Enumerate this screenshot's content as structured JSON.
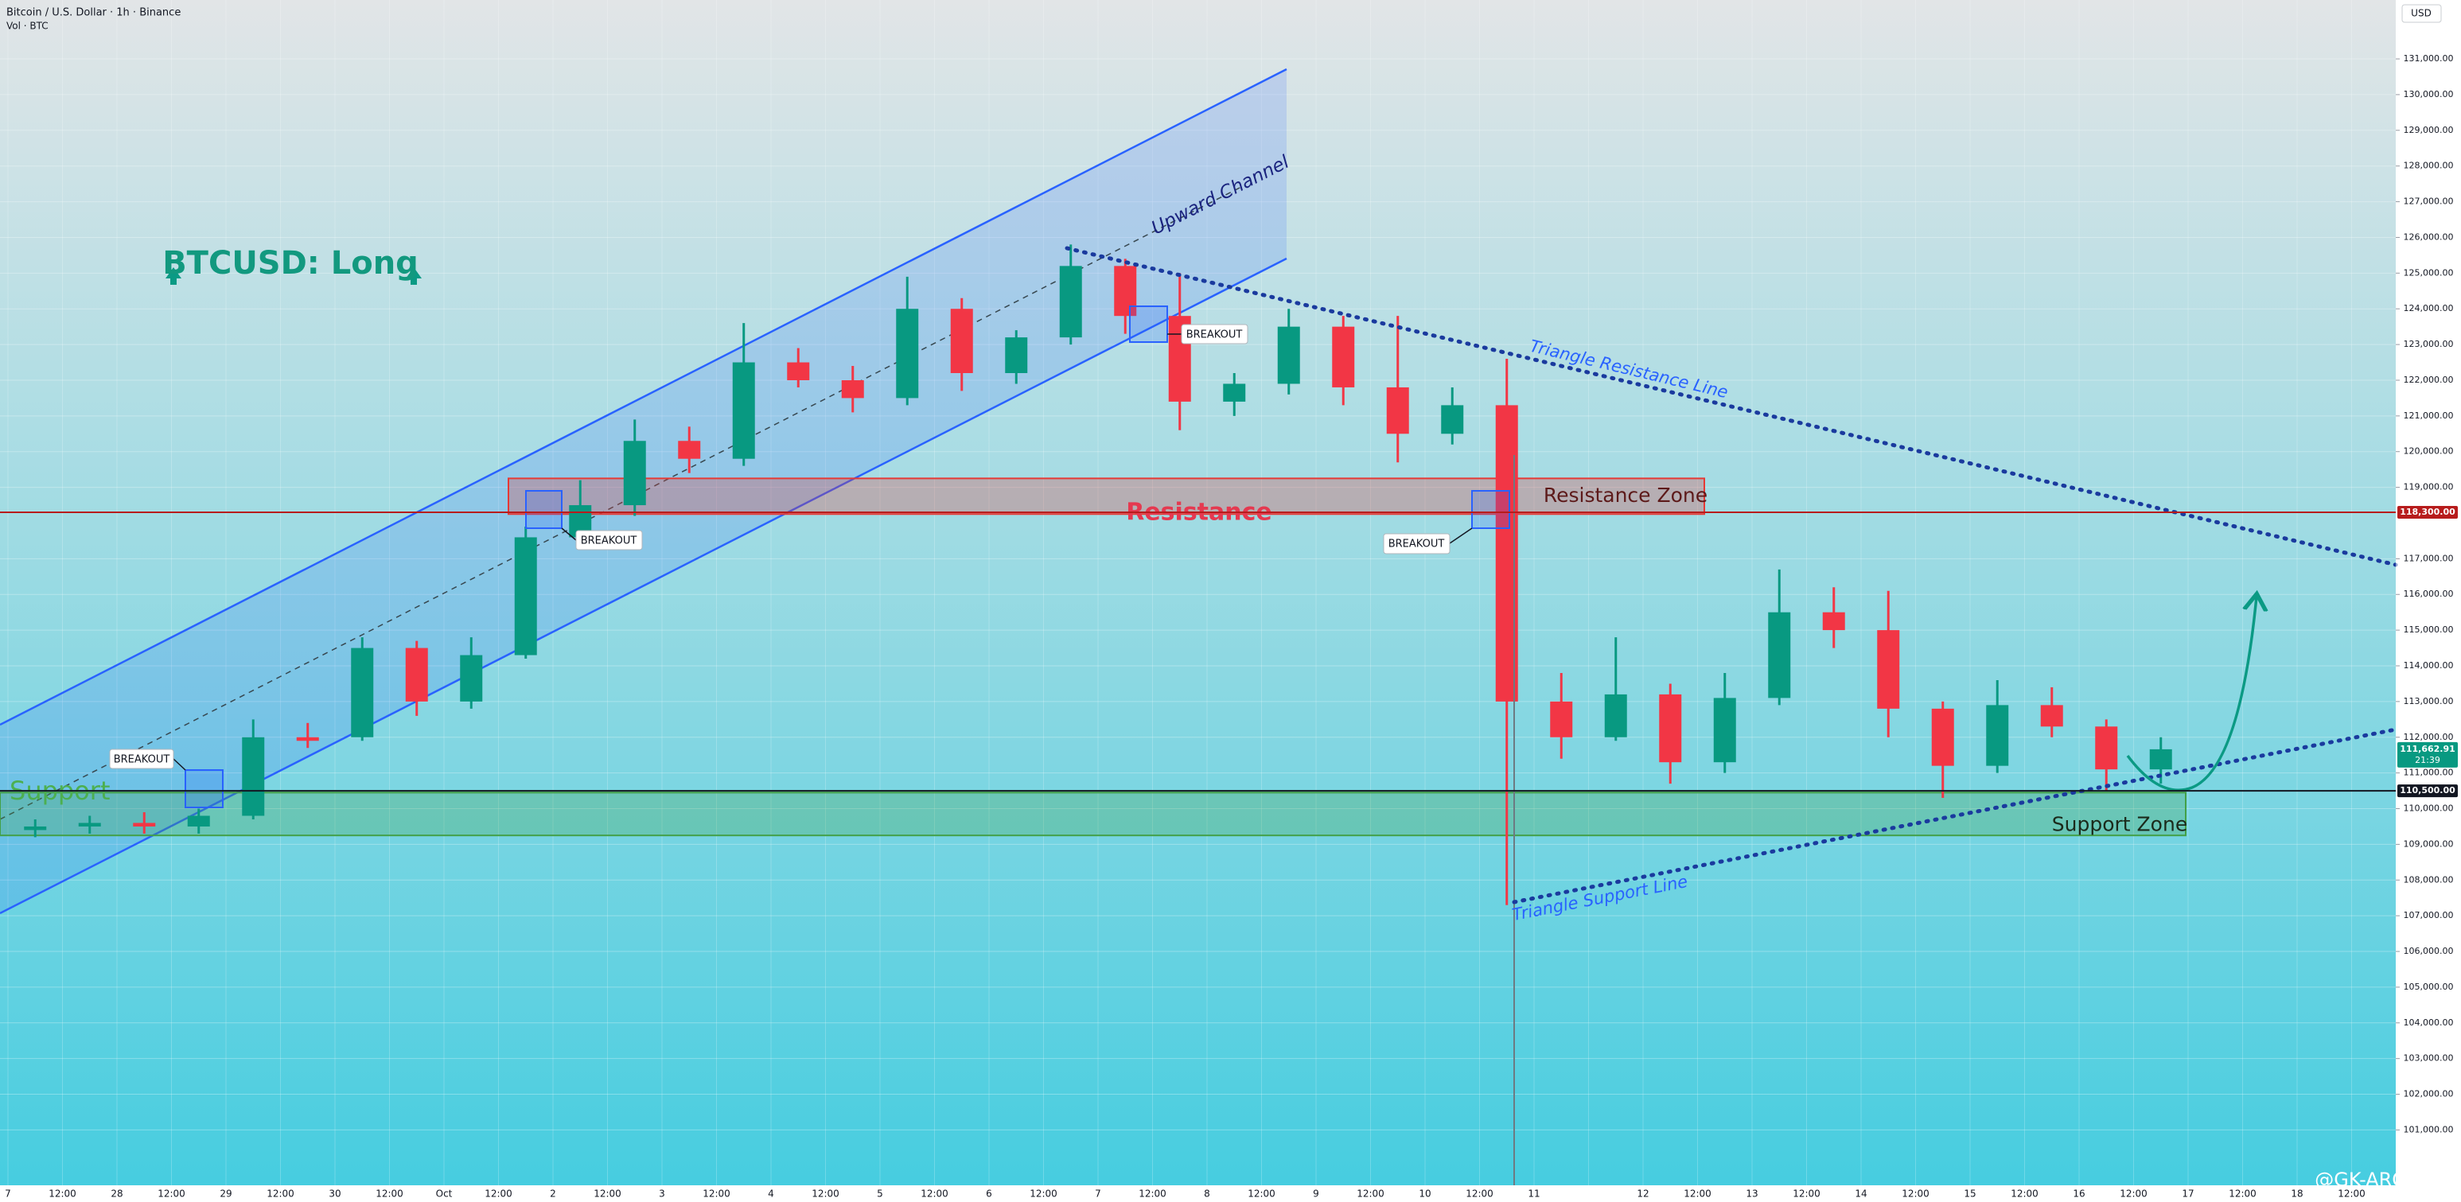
{
  "chart_data": {
    "type": "candlestick",
    "title": "Bitcoin / U.S. Dollar · 1h · Binance",
    "subtitle": "Vol · BTC",
    "currency": "USD",
    "watermark": "@GK-ARONNO",
    "categories": [
      "7",
      "12:00",
      "28",
      "12:00",
      "29",
      "12:00",
      "30",
      "12:00",
      "Oct",
      "12:00",
      "2",
      "12:00",
      "3",
      "12:00",
      "4",
      "12:00",
      "5",
      "12:00",
      "6",
      "12:00",
      "7",
      "12:00",
      "8",
      "12:00",
      "9",
      "12:00",
      "10",
      "12:00",
      "11",
      null,
      "12",
      "12:00",
      "13",
      "12:00",
      "14",
      "12:00",
      "15",
      "12:00",
      "16",
      "12:00",
      "17",
      "12:00",
      "18",
      "12:00"
    ],
    "open": [
      109400,
      109500,
      109600,
      109500,
      109800,
      112000,
      112000,
      114500,
      113000,
      114300,
      117600,
      118500,
      120300,
      119800,
      122500,
      122000,
      121500,
      124000,
      122200,
      123200,
      125200,
      123800,
      121400,
      121900,
      123500,
      121800,
      120500,
      121300,
      113000,
      112000,
      113200,
      111300,
      113100,
      115500,
      115000,
      112800,
      111200,
      112900,
      112300,
      111100,
      null,
      null,
      null,
      null
    ],
    "high": [
      109700,
      109800,
      109900,
      110000,
      112500,
      112400,
      114800,
      114700,
      114800,
      117900,
      119200,
      120900,
      120700,
      123600,
      122900,
      122400,
      124900,
      124300,
      123400,
      125800,
      125400,
      125000,
      122200,
      124000,
      123800,
      123800,
      121800,
      122600,
      113800,
      114800,
      113500,
      113800,
      116700,
      116200,
      116100,
      113000,
      113600,
      113400,
      112500,
      112000,
      null,
      null,
      null,
      null
    ],
    "low": [
      109200,
      109300,
      109300,
      109300,
      109700,
      111700,
      111900,
      112600,
      112800,
      114200,
      117300,
      118200,
      119400,
      119600,
      121800,
      121100,
      121300,
      121700,
      121900,
      123000,
      123300,
      120600,
      121000,
      121600,
      121300,
      119700,
      120200,
      107300,
      111400,
      111900,
      110700,
      111000,
      112900,
      114500,
      112000,
      110300,
      111000,
      112000,
      110500,
      110700,
      null,
      null,
      null,
      null
    ],
    "close": [
      109500,
      109600,
      109500,
      109800,
      112000,
      111900,
      114500,
      113000,
      114300,
      117600,
      118500,
      120300,
      119800,
      122500,
      122000,
      121500,
      124000,
      122200,
      123200,
      125200,
      123800,
      121400,
      121900,
      123500,
      121800,
      120500,
      121300,
      113000,
      112000,
      113200,
      111300,
      113100,
      115500,
      115000,
      112800,
      111200,
      112900,
      112300,
      111100,
      111662.91,
      null,
      null,
      null,
      null
    ],
    "up_color": "#089981",
    "down_color": "#f23645",
    "ylim": [
      99450,
      132650
    ],
    "yticks": [
      {
        "value": 101000,
        "label": "101,000.00"
      },
      {
        "value": 102000,
        "label": "102,000.00"
      },
      {
        "value": 103000,
        "label": "103,000.00"
      },
      {
        "value": 104000,
        "label": "104,000.00"
      },
      {
        "value": 105000,
        "label": "105,000.00"
      },
      {
        "value": 106000,
        "label": "106,000.00"
      },
      {
        "value": 107000,
        "label": "107,000.00"
      },
      {
        "value": 108000,
        "label": "108,000.00"
      },
      {
        "value": 109000,
        "label": "109,000.00"
      },
      {
        "value": 110000,
        "label": "110,000.00"
      },
      {
        "value": 111000,
        "label": "111,000.00"
      },
      {
        "value": 112000,
        "label": "112,000.00"
      },
      {
        "value": 113000,
        "label": "113,000.00"
      },
      {
        "value": 114000,
        "label": "114,000.00"
      },
      {
        "value": 115000,
        "label": "115,000.00"
      },
      {
        "value": 116000,
        "label": "116,000.00"
      },
      {
        "value": 117000,
        "label": "117,000.00"
      },
      {
        "value": 119000,
        "label": "119,000.00"
      },
      {
        "value": 120000,
        "label": "120,000.00"
      },
      {
        "value": 121000,
        "label": "121,000.00"
      },
      {
        "value": 122000,
        "label": "122,000.00"
      },
      {
        "value": 123000,
        "label": "123,000.00"
      },
      {
        "value": 124000,
        "label": "124,000.00"
      },
      {
        "value": 125000,
        "label": "125,000.00"
      },
      {
        "value": 126000,
        "label": "126,000.00"
      },
      {
        "value": 127000,
        "label": "127,000.00"
      },
      {
        "value": 128000,
        "label": "128,000.00"
      },
      {
        "value": 129000,
        "label": "129,000.00"
      },
      {
        "value": 130000,
        "label": "130,000.00"
      },
      {
        "value": 131000,
        "label": "131,000.00"
      }
    ],
    "grid": true,
    "price_lines": [
      {
        "value": 118300,
        "label": "118,300.00",
        "color": "#b71c1c"
      },
      {
        "value": 110500,
        "label": "110,500.00",
        "color": "#131722"
      }
    ],
    "last_price": {
      "value": 111662.91,
      "label": "111,662.91",
      "countdown": "21:39",
      "color": "#089981"
    },
    "zones": [
      {
        "label": "Resistance Zone",
        "range": [
          118250,
          119250
        ],
        "color": "#e53935"
      },
      {
        "label": "Support Zone",
        "range": [
          109250,
          110450
        ],
        "color": "#43a047"
      }
    ],
    "annotations": {
      "idea": "BTCUSD: Long",
      "channel": "Upward Channel",
      "triangle_resistance": "Triangle Resistance Line",
      "triangle_support": "Triangle Support Line",
      "resistance": "Resistance",
      "support": "Support",
      "breakouts": [
        "BREAKOUT",
        "BREAKOUT",
        "BREAKOUT",
        "BREAKOUT"
      ]
    }
  }
}
